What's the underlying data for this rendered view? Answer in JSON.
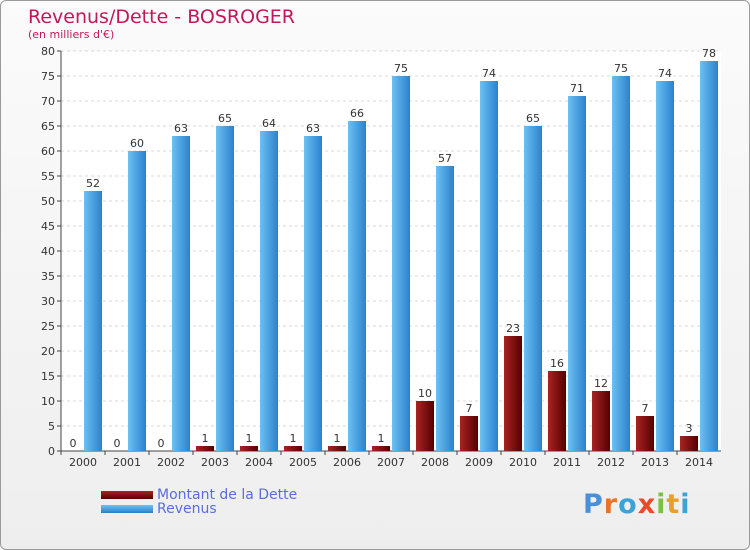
{
  "title": "Revenus/Dette - BOSROGER",
  "subtitle": "(en milliers d'€)",
  "chart_data": {
    "type": "bar",
    "categories": [
      "2000",
      "2001",
      "2002",
      "2003",
      "2004",
      "2005",
      "2006",
      "2007",
      "2008",
      "2009",
      "2010",
      "2011",
      "2012",
      "2013",
      "2014"
    ],
    "series": [
      {
        "name": "Montant de la Dette",
        "values": [
          0,
          0,
          0,
          1,
          1,
          1,
          1,
          1,
          10,
          7,
          23,
          16,
          12,
          7,
          3
        ],
        "color": "#7a0a0a"
      },
      {
        "name": "Revenus",
        "values": [
          52,
          60,
          63,
          65,
          64,
          63,
          66,
          75,
          57,
          74,
          65,
          71,
          75,
          74,
          78
        ],
        "color": "#3b9de0"
      }
    ],
    "ylim": [
      0,
      80
    ],
    "yticks": [
      0,
      5,
      10,
      15,
      20,
      25,
      30,
      35,
      40,
      45,
      50,
      55,
      60,
      65,
      70,
      75,
      80
    ],
    "grid": true,
    "legend": "bottom-left"
  },
  "logo": {
    "text": "Proxiti",
    "letter_colors": [
      "#4a90d9",
      "#e8742a",
      "#3aa3d8",
      "#e84a2a",
      "#7cc242",
      "#e8a02a",
      "#3aa3d8"
    ]
  }
}
